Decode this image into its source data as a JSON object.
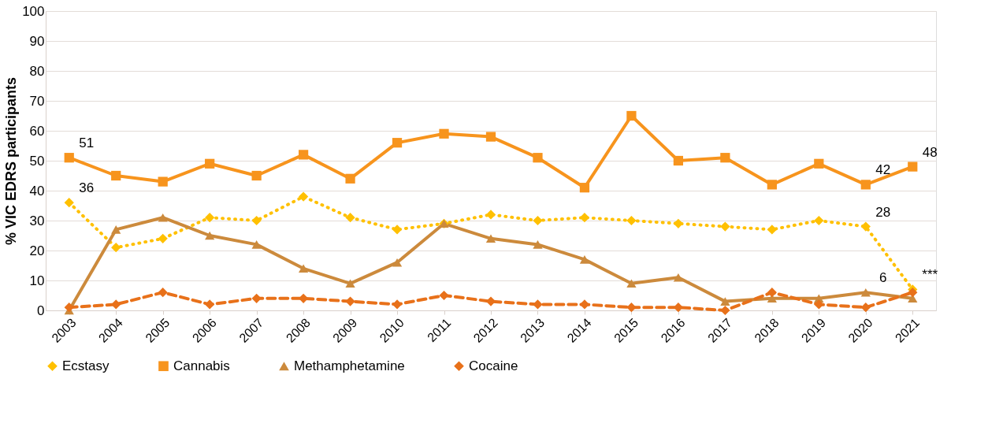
{
  "chart_data": {
    "type": "line",
    "ylabel": "% VIC EDRS participants",
    "categories": [
      "2003",
      "2004",
      "2005",
      "2006",
      "2007",
      "2008",
      "2009",
      "2010",
      "2011",
      "2012",
      "2013",
      "2014",
      "2015",
      "2016",
      "2017",
      "2018",
      "2019",
      "2020",
      "2021"
    ],
    "ylim": [
      0,
      100
    ],
    "yticks": [
      0,
      10,
      20,
      30,
      40,
      50,
      60,
      70,
      80,
      90,
      100
    ],
    "grid": "y",
    "legend": "bottom",
    "series": [
      {
        "name": "Ecstasy",
        "color": "#ffc000",
        "marker": "diamond",
        "line_style": "dotted",
        "values": [
          36,
          21,
          24,
          31,
          30,
          38,
          31,
          27,
          29,
          32,
          30,
          31,
          30,
          29,
          28,
          27,
          30,
          28,
          7
        ],
        "value_labels": [
          "36",
          null,
          null,
          null,
          null,
          null,
          null,
          null,
          null,
          null,
          null,
          null,
          null,
          null,
          null,
          null,
          null,
          "28",
          "***"
        ]
      },
      {
        "name": "Cannabis",
        "color": "#f7941d",
        "marker": "square",
        "line_style": "solid",
        "values": [
          51,
          45,
          43,
          49,
          45,
          52,
          44,
          56,
          59,
          58,
          51,
          41,
          65,
          50,
          51,
          42,
          49,
          42,
          48
        ],
        "value_labels": [
          "51",
          null,
          null,
          null,
          null,
          null,
          null,
          null,
          null,
          null,
          null,
          null,
          null,
          null,
          null,
          null,
          null,
          "42",
          "48"
        ]
      },
      {
        "name": "Methamphetamine",
        "color": "#cc8a3c",
        "marker": "triangle",
        "line_style": "solid",
        "values": [
          0,
          27,
          31,
          25,
          22,
          14,
          9,
          16,
          29,
          24,
          22,
          17,
          9,
          11,
          3,
          4,
          4,
          6,
          4
        ],
        "value_labels": [
          null,
          null,
          null,
          null,
          null,
          null,
          null,
          null,
          null,
          null,
          null,
          null,
          null,
          null,
          null,
          null,
          null,
          "6",
          null
        ]
      },
      {
        "name": "Cocaine",
        "color": "#e8711a",
        "marker": "diamond",
        "line_style": "dashed",
        "values": [
          1,
          2,
          6,
          2,
          4,
          4,
          3,
          2,
          5,
          3,
          2,
          2,
          1,
          1,
          0,
          6,
          2,
          1,
          6
        ]
      }
    ]
  }
}
